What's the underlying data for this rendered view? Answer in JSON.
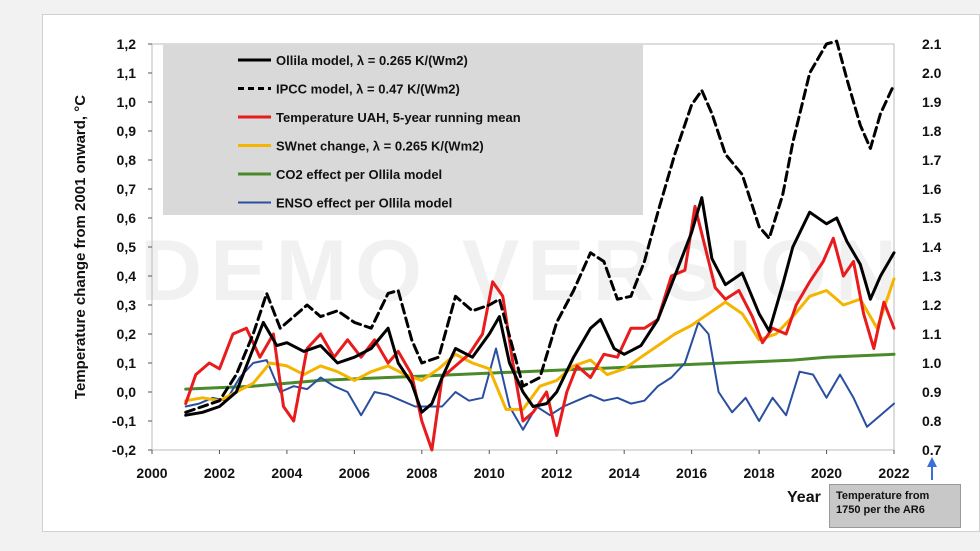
{
  "chart_data": {
    "type": "line",
    "xlabel": "Year",
    "ylabel": "Temperature change from 2001 onward, °C",
    "xlim": [
      2000,
      2022
    ],
    "ylim": [
      -0.2,
      1.2
    ],
    "y2lim": [
      0.7,
      2.1
    ],
    "x_ticks": [
      "2000",
      "2002",
      "2004",
      "2006",
      "2008",
      "2010",
      "2012",
      "2014",
      "2016",
      "2018",
      "2020",
      "2022"
    ],
    "y_ticks": [
      "-0,2",
      "-0,1",
      "0,0",
      "0,1",
      "0,2",
      "0,3",
      "0,4",
      "0,5",
      "0,6",
      "0,7",
      "0,8",
      "0,9",
      "1,0",
      "1,1",
      "1,2"
    ],
    "y2_ticks": [
      "0.7",
      "0.8",
      "0.9",
      "1.0",
      "1.1",
      "1.2",
      "1.3",
      "1.4",
      "1.5",
      "1.6",
      "1.7",
      "1.8",
      "1.9",
      "2.0",
      "2.1"
    ],
    "grid": false,
    "legend_position": "top-left",
    "watermark": "DEMO VERSION",
    "note": "Temperature from 1750 per the AR6",
    "series": [
      {
        "name": "Ollila model, λ = 0.265 K/(Wm2)",
        "color": "#000000",
        "dash": "solid",
        "width": 3,
        "x": [
          2001.0,
          2001.5,
          2002.0,
          2002.5,
          2003.0,
          2003.3,
          2003.7,
          2004.0,
          2004.5,
          2005.0,
          2005.5,
          2006.0,
          2006.5,
          2007.0,
          2007.3,
          2007.7,
          2008.0,
          2008.3,
          2008.6,
          2009.0,
          2009.5,
          2010.0,
          2010.3,
          2010.6,
          2011.0,
          2011.3,
          2011.7,
          2012.0,
          2012.5,
          2013.0,
          2013.3,
          2013.7,
          2014.0,
          2014.5,
          2015.0,
          2015.5,
          2016.0,
          2016.3,
          2016.6,
          2017.0,
          2017.5,
          2018.0,
          2018.3,
          2018.7,
          2019.0,
          2019.5,
          2020.0,
          2020.3,
          2020.6,
          2021.0,
          2021.3,
          2021.6,
          2022.0
        ],
        "y": [
          -0.08,
          -0.07,
          -0.05,
          0.0,
          0.15,
          0.24,
          0.16,
          0.17,
          0.14,
          0.16,
          0.1,
          0.12,
          0.15,
          0.22,
          0.1,
          0.03,
          -0.07,
          -0.04,
          0.05,
          0.15,
          0.12,
          0.2,
          0.26,
          0.1,
          0.0,
          -0.05,
          -0.04,
          0.0,
          0.12,
          0.22,
          0.25,
          0.15,
          0.13,
          0.16,
          0.25,
          0.4,
          0.55,
          0.67,
          0.46,
          0.37,
          0.41,
          0.27,
          0.21,
          0.37,
          0.5,
          0.62,
          0.58,
          0.6,
          0.52,
          0.44,
          0.32,
          0.4,
          0.48
        ]
      },
      {
        "name": "IPCC model, λ = 0.47 K/(Wm2)",
        "color": "#000000",
        "dash": "dashed",
        "width": 3,
        "x": [
          2001.0,
          2001.5,
          2002.0,
          2002.5,
          2003.0,
          2003.4,
          2003.8,
          2004.2,
          2004.6,
          2005.0,
          2005.5,
          2006.0,
          2006.5,
          2007.0,
          2007.3,
          2007.7,
          2008.0,
          2008.5,
          2009.0,
          2009.5,
          2010.0,
          2010.3,
          2010.7,
          2011.0,
          2011.5,
          2012.0,
          2012.5,
          2013.0,
          2013.4,
          2013.8,
          2014.2,
          2014.6,
          2015.0,
          2015.5,
          2016.0,
          2016.3,
          2016.6,
          2017.0,
          2017.5,
          2018.0,
          2018.3,
          2018.7,
          2019.0,
          2019.5,
          2020.0,
          2020.3,
          2020.6,
          2021.0,
          2021.3,
          2021.6,
          2022.0
        ],
        "y": [
          -0.07,
          -0.05,
          -0.03,
          0.06,
          0.2,
          0.34,
          0.22,
          0.26,
          0.3,
          0.26,
          0.28,
          0.24,
          0.22,
          0.34,
          0.35,
          0.18,
          0.1,
          0.12,
          0.33,
          0.28,
          0.3,
          0.32,
          0.15,
          0.02,
          0.05,
          0.24,
          0.35,
          0.48,
          0.45,
          0.32,
          0.33,
          0.45,
          0.62,
          0.82,
          0.99,
          1.04,
          0.96,
          0.82,
          0.75,
          0.57,
          0.53,
          0.68,
          0.86,
          1.1,
          1.2,
          1.21,
          1.08,
          0.92,
          0.84,
          0.96,
          1.06
        ]
      },
      {
        "name": "Temperature UAH, 5-year running mean",
        "color": "#e81c1c",
        "dash": "solid",
        "width": 3,
        "x": [
          2001.0,
          2001.3,
          2001.7,
          2002.0,
          2002.4,
          2002.8,
          2003.2,
          2003.6,
          2003.9,
          2004.2,
          2004.6,
          2005.0,
          2005.4,
          2005.8,
          2006.2,
          2006.6,
          2007.0,
          2007.3,
          2007.7,
          2008.0,
          2008.3,
          2008.6,
          2009.0,
          2009.4,
          2009.8,
          2010.1,
          2010.4,
          2010.7,
          2011.0,
          2011.3,
          2011.7,
          2012.0,
          2012.3,
          2012.6,
          2013.0,
          2013.4,
          2013.8,
          2014.2,
          2014.6,
          2015.0,
          2015.4,
          2015.8,
          2016.1,
          2016.4,
          2016.7,
          2017.0,
          2017.4,
          2017.8,
          2018.1,
          2018.4,
          2018.8,
          2019.1,
          2019.5,
          2019.9,
          2020.2,
          2020.5,
          2020.8,
          2021.1,
          2021.4,
          2021.7,
          2022.0
        ],
        "y": [
          -0.04,
          0.06,
          0.1,
          0.08,
          0.2,
          0.22,
          0.12,
          0.2,
          -0.05,
          -0.1,
          0.15,
          0.2,
          0.12,
          0.18,
          0.12,
          0.18,
          0.1,
          0.14,
          0.06,
          -0.1,
          -0.2,
          0.05,
          0.09,
          0.13,
          0.2,
          0.38,
          0.33,
          0.1,
          -0.1,
          -0.07,
          0.0,
          -0.15,
          0.0,
          0.09,
          0.05,
          0.13,
          0.12,
          0.22,
          0.22,
          0.25,
          0.4,
          0.42,
          0.64,
          0.5,
          0.36,
          0.32,
          0.35,
          0.26,
          0.17,
          0.22,
          0.2,
          0.3,
          0.38,
          0.45,
          0.53,
          0.4,
          0.45,
          0.27,
          0.15,
          0.31,
          0.22
        ]
      },
      {
        "name": "SWnet change,  λ = 0.265 K/(Wm2)",
        "color": "#f5b400",
        "dash": "solid",
        "width": 3,
        "x": [
          2001.0,
          2001.5,
          2002.0,
          2002.5,
          2003.0,
          2003.5,
          2004.0,
          2004.5,
          2005.0,
          2005.5,
          2006.0,
          2006.5,
          2007.0,
          2007.5,
          2008.0,
          2008.5,
          2009.0,
          2009.5,
          2010.0,
          2010.5,
          2011.0,
          2011.5,
          2012.0,
          2012.5,
          2013.0,
          2013.5,
          2014.0,
          2014.5,
          2015.0,
          2015.5,
          2016.0,
          2016.5,
          2017.0,
          2017.5,
          2018.0,
          2018.5,
          2019.0,
          2019.5,
          2020.0,
          2020.5,
          2021.0,
          2021.5,
          2022.0
        ],
        "y": [
          -0.03,
          -0.02,
          -0.03,
          0.0,
          0.03,
          0.1,
          0.09,
          0.06,
          0.09,
          0.07,
          0.04,
          0.07,
          0.09,
          0.06,
          0.04,
          0.08,
          0.13,
          0.1,
          0.08,
          -0.06,
          -0.06,
          0.02,
          0.04,
          0.09,
          0.11,
          0.06,
          0.08,
          0.12,
          0.16,
          0.2,
          0.23,
          0.27,
          0.31,
          0.27,
          0.18,
          0.2,
          0.26,
          0.33,
          0.35,
          0.3,
          0.32,
          0.22,
          0.39
        ]
      },
      {
        "name": "CO2 effect per Ollila model",
        "color": "#4a8a2a",
        "dash": "solid",
        "width": 3,
        "x": [
          2001.0,
          2002.0,
          2003.0,
          2004.0,
          2005.0,
          2006.0,
          2007.0,
          2008.0,
          2009.0,
          2010.0,
          2011.0,
          2012.0,
          2013.0,
          2014.0,
          2015.0,
          2016.0,
          2017.0,
          2018.0,
          2019.0,
          2020.0,
          2021.0,
          2022.0
        ],
        "y": [
          0.01,
          0.015,
          0.02,
          0.03,
          0.04,
          0.045,
          0.05,
          0.055,
          0.06,
          0.065,
          0.07,
          0.075,
          0.08,
          0.085,
          0.09,
          0.095,
          0.1,
          0.105,
          0.11,
          0.12,
          0.125,
          0.13
        ]
      },
      {
        "name": "ENSO effect per Ollila model",
        "color": "#2b4fa0",
        "dash": "solid",
        "width": 2,
        "x": [
          2001.0,
          2001.4,
          2001.8,
          2002.2,
          2002.6,
          2003.0,
          2003.4,
          2003.8,
          2004.2,
          2004.6,
          2005.0,
          2005.4,
          2005.8,
          2006.2,
          2006.6,
          2007.0,
          2007.4,
          2007.8,
          2008.2,
          2008.6,
          2009.0,
          2009.4,
          2009.8,
          2010.2,
          2010.6,
          2011.0,
          2011.4,
          2011.8,
          2012.2,
          2012.6,
          2013.0,
          2013.4,
          2013.8,
          2014.2,
          2014.6,
          2015.0,
          2015.4,
          2015.8,
          2016.2,
          2016.5,
          2016.8,
          2017.2,
          2017.6,
          2018.0,
          2018.4,
          2018.8,
          2019.2,
          2019.6,
          2020.0,
          2020.4,
          2020.8,
          2021.2,
          2021.6,
          2022.0
        ],
        "y": [
          -0.05,
          -0.04,
          -0.02,
          -0.03,
          0.05,
          0.1,
          0.11,
          0.0,
          0.02,
          0.01,
          0.05,
          0.02,
          0.0,
          -0.08,
          0.0,
          -0.01,
          -0.03,
          -0.05,
          -0.05,
          -0.05,
          0.0,
          -0.03,
          -0.02,
          0.15,
          -0.05,
          -0.13,
          -0.05,
          -0.08,
          -0.05,
          -0.03,
          -0.01,
          -0.03,
          -0.02,
          -0.04,
          -0.03,
          0.02,
          0.05,
          0.1,
          0.24,
          0.2,
          0.0,
          -0.07,
          -0.02,
          -0.1,
          -0.02,
          -0.08,
          0.07,
          0.06,
          -0.02,
          0.06,
          -0.02,
          -0.12,
          -0.08,
          -0.04
        ]
      }
    ]
  }
}
